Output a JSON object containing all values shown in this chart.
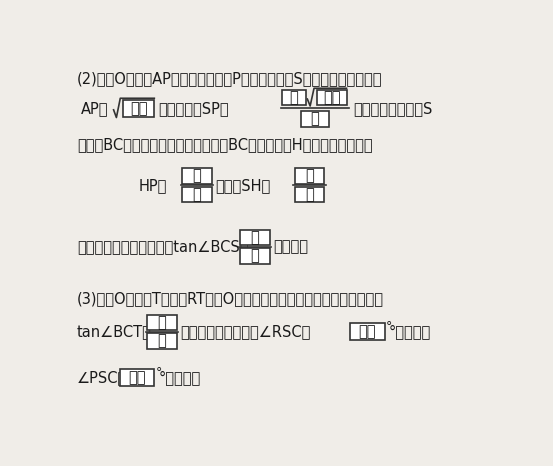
{
  "bg_color": "#f0ede8",
  "text_color": "#1a1a1a",
  "font_size": 10.5,
  "line1": "(2)　円Oと線分APとの交点のうちPと異なる方をSとする。このとき，",
  "line2a": "AP＝",
  "line2b": "であり，　SP＝",
  "line2c": "である。また，点S",
  "line3": "から辺BCへ垂線を下ろし，　垂線とBCとの交点をHとする。このとき",
  "line4a": "HP＝",
  "line4b": "，　　SH＝",
  "line5a": "である。したがって，　tan∠BCS＝",
  "line5b": "である。",
  "line6": "(3)　円O上に点Tを線分RTが円Oの直径となるようにとる。このとき，",
  "line7a": "tan∠BCT＝",
  "line7b": "である。よって，　∠RSC＝",
  "line7c": "°であり，",
  "line8a": "∠PSC＝",
  "line8b": "°である。",
  "kuke": "クケ",
  "ko": "コ",
  "sashi": "サシ",
  "su": "ス",
  "se": "セ",
  "so": "ソ",
  "ta": "タ",
  "chi": "チ",
  "tsu": "ツ",
  "te": "テ",
  "to": "ト",
  "na": "ナ",
  "ninu": "ニヌ",
  "neno": "ネノ"
}
